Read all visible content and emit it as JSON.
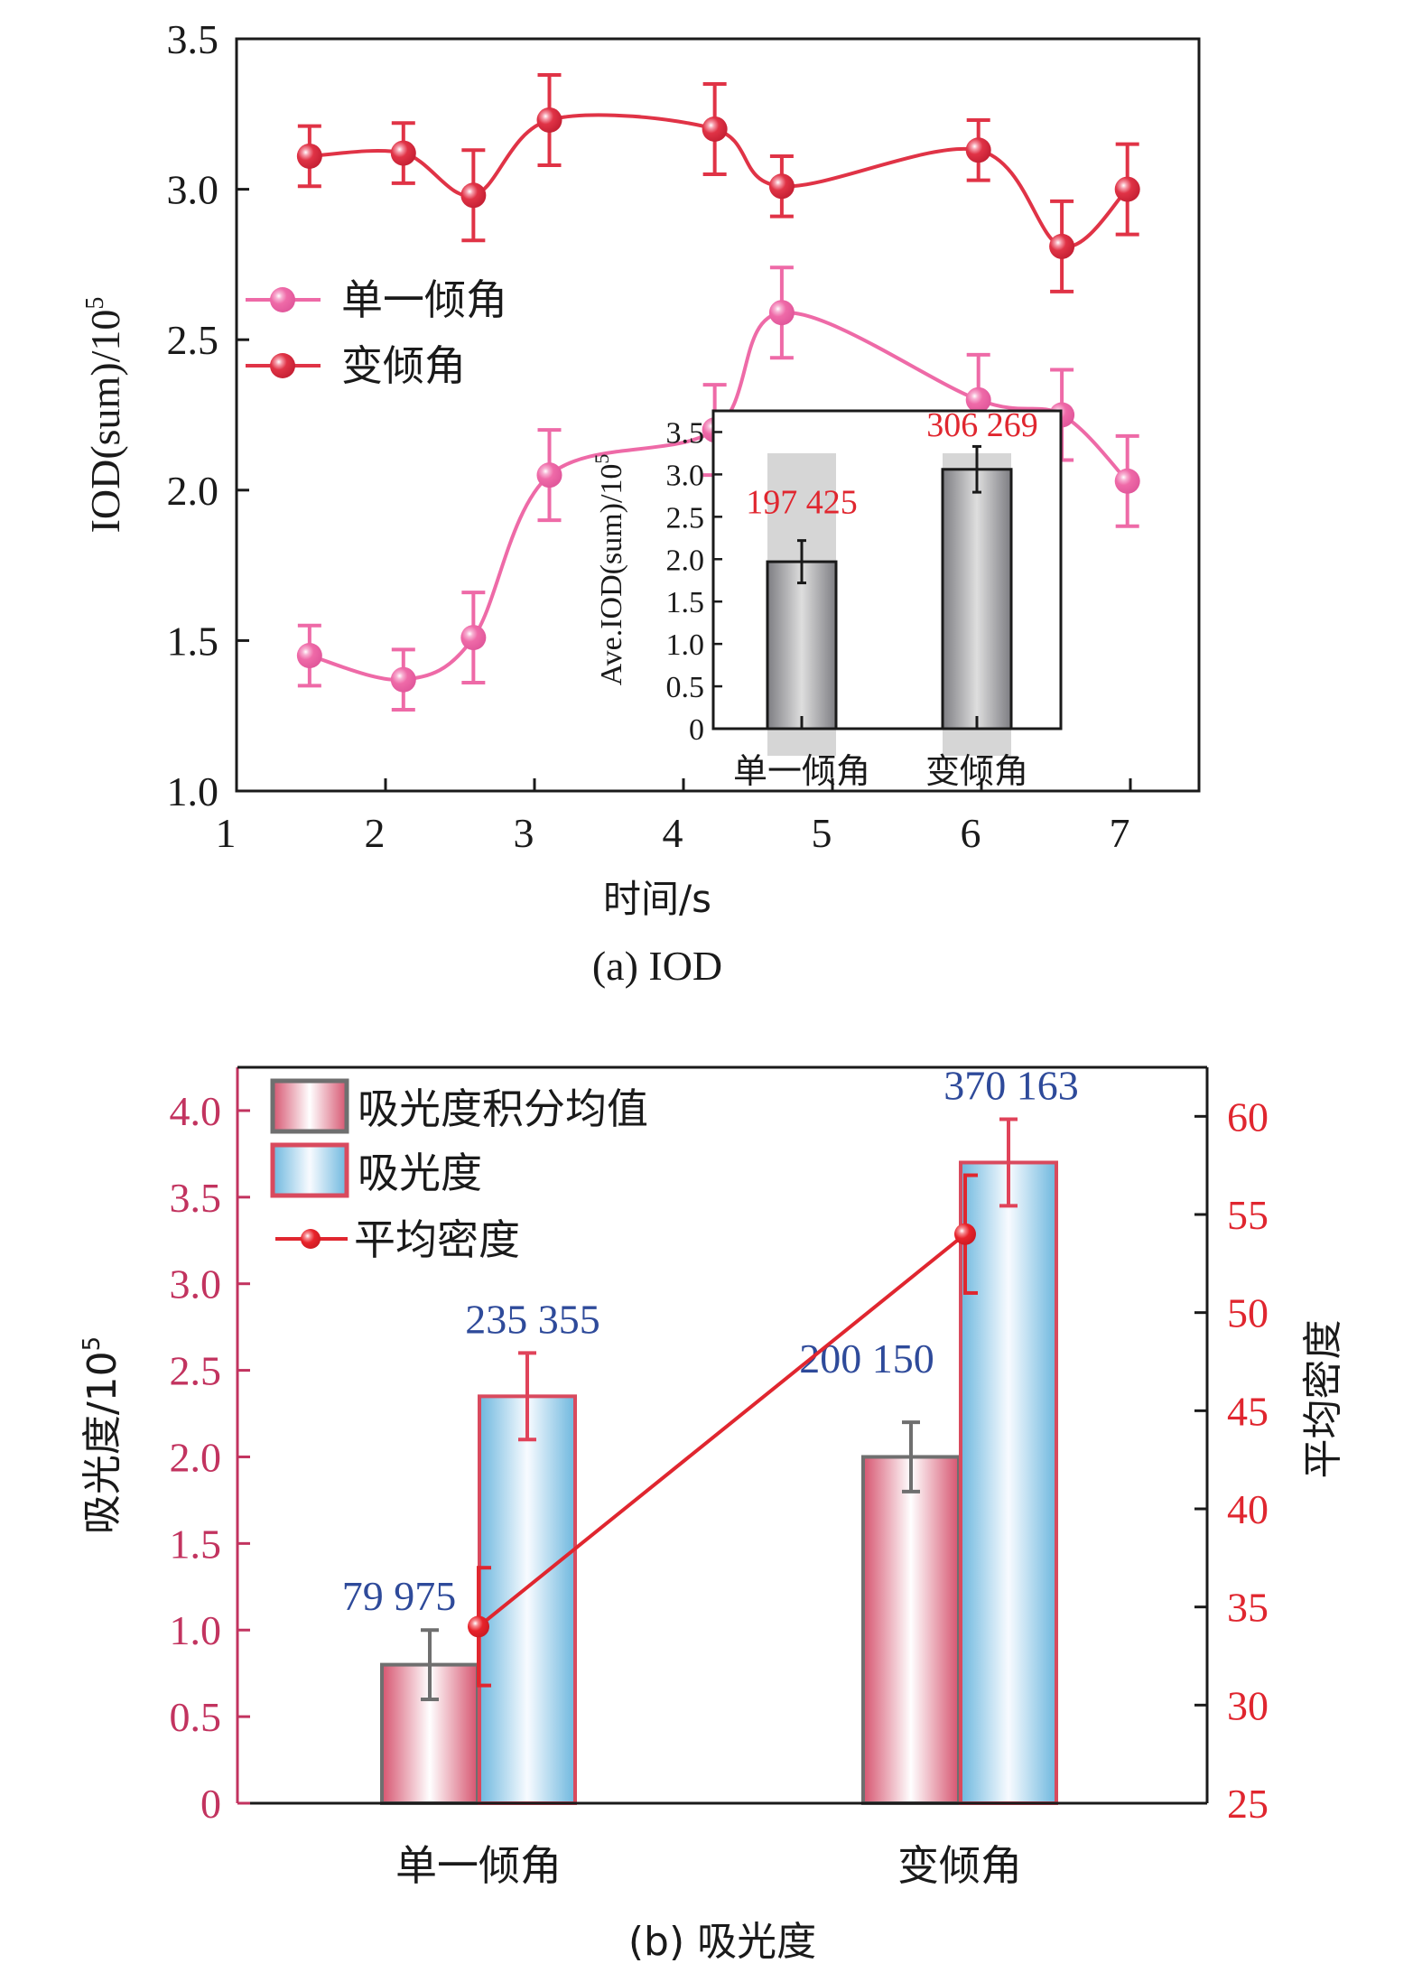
{
  "chart_data": [
    {
      "id": "a",
      "type": "line",
      "caption": "(a) IOD",
      "xlabel": "时间/s",
      "ylabel": "IOD(sum)/10",
      "ylabel_sup": "5",
      "xlim": [
        1,
        7.5
      ],
      "ylim": [
        1.0,
        3.5
      ],
      "xticks": [
        "1",
        "2",
        "3",
        "4",
        "5",
        "6",
        "7"
      ],
      "yticks": [
        "1.0",
        "1.5",
        "2.0",
        "2.5",
        "3.0",
        "3.5"
      ],
      "legend": [
        "单一倾角",
        "变倾角"
      ],
      "legend_position": "center-left",
      "grid": false,
      "series": [
        {
          "name": "单一倾角",
          "color": "#ee6aa7",
          "x": [
            1.49,
            2.12,
            2.59,
            3.1,
            4.21,
            4.66,
            5.98,
            6.54,
            6.98
          ],
          "y": [
            1.45,
            1.37,
            1.51,
            2.05,
            2.2,
            2.59,
            2.3,
            2.25,
            2.03
          ],
          "err": [
            0.1,
            0.1,
            0.15,
            0.15,
            0.15,
            0.15,
            0.15,
            0.15,
            0.15
          ]
        },
        {
          "name": "变倾角",
          "color": "#e03346",
          "x": [
            1.49,
            2.12,
            2.59,
            3.1,
            4.21,
            4.66,
            5.98,
            6.54,
            6.98
          ],
          "y": [
            3.11,
            3.12,
            2.98,
            3.23,
            3.2,
            3.01,
            3.13,
            2.81,
            3.0
          ],
          "err": [
            0.1,
            0.1,
            0.15,
            0.15,
            0.15,
            0.1,
            0.1,
            0.15,
            0.15
          ]
        }
      ],
      "inset": {
        "type": "bar",
        "ylabel": "Ave.IOD(sum)/10",
        "ylabel_sup": "5",
        "ylim": [
          0,
          3.75
        ],
        "yticks": [
          "0",
          "0.5",
          "1.0",
          "1.5",
          "2.0",
          "2.5",
          "3.0",
          "3.5"
        ],
        "categories": [
          "单一倾角",
          "变倾角"
        ],
        "values": [
          1.97,
          3.06
        ],
        "err": [
          0.25,
          0.27
        ],
        "labels": [
          "197 425",
          "306 269"
        ],
        "label_color": "#e0262f"
      }
    },
    {
      "id": "b",
      "type": "bar",
      "caption": "(b) 吸光度",
      "ylabel": "吸光度/10",
      "ylabel_sup": "5",
      "y2label": "平均密度",
      "ylim": [
        0,
        4.25
      ],
      "y2lim": [
        25,
        62.5
      ],
      "yticks": [
        "0",
        "0.5",
        "1.0",
        "1.5",
        "2.0",
        "2.5",
        "3.0",
        "3.5",
        "4.0"
      ],
      "y2ticks": [
        "25",
        "30",
        "35",
        "40",
        "45",
        "50",
        "55",
        "60"
      ],
      "categories": [
        "单一倾角",
        "变倾角"
      ],
      "legend": [
        "吸光度积分均值",
        "吸光度",
        "平均密度"
      ],
      "legend_position": "top-left",
      "grid": false,
      "series": [
        {
          "name": "吸光度积分均值",
          "kind": "bar",
          "axis": "left",
          "values": [
            0.8,
            2.0
          ],
          "err": [
            0.2,
            0.2
          ],
          "labels": [
            "79 975",
            "200 150"
          ]
        },
        {
          "name": "吸光度",
          "kind": "bar",
          "axis": "left",
          "values": [
            2.35,
            3.7
          ],
          "err": [
            0.25,
            0.25
          ],
          "labels": [
            "235 355",
            "370 163"
          ]
        },
        {
          "name": "平均密度",
          "kind": "line",
          "axis": "right",
          "values": [
            34,
            54
          ],
          "err": [
            3,
            3
          ]
        }
      ],
      "colors": {
        "left_axis": "#c2335f",
        "right_axis": "#e0262f",
        "value_labels": "#2e4a9a",
        "line": "#e0262f"
      }
    }
  ]
}
